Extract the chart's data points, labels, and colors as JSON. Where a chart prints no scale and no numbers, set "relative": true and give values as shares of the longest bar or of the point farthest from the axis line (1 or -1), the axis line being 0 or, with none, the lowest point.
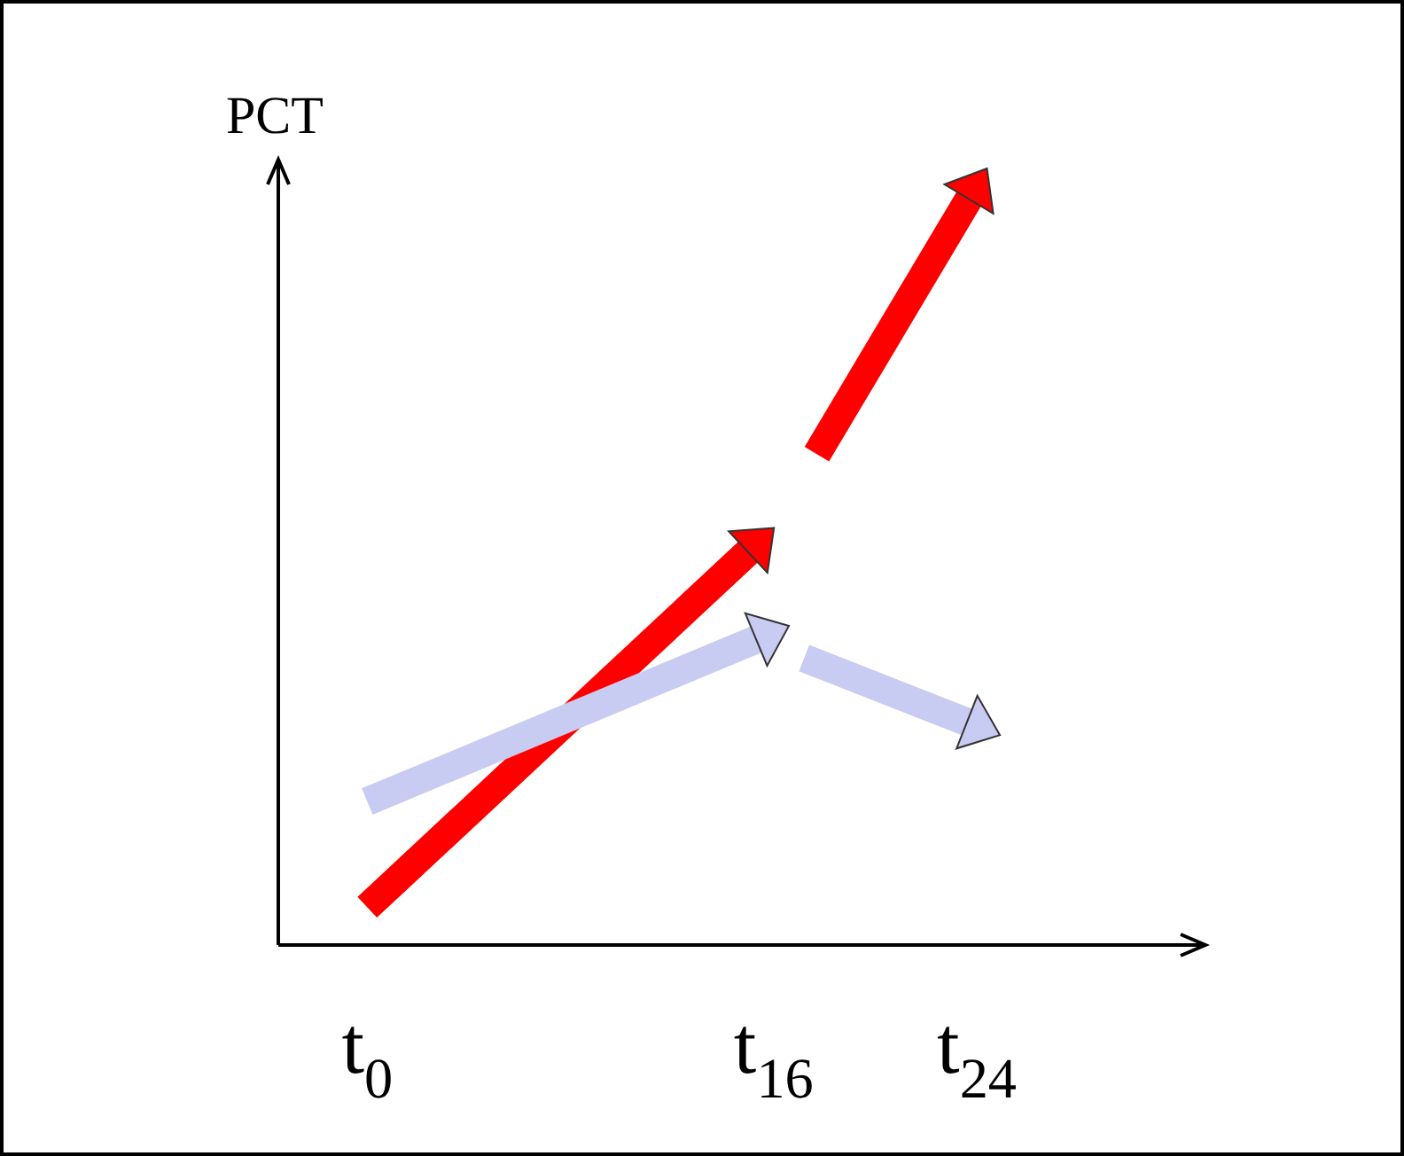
{
  "chart_data": {
    "type": "line",
    "relative": true,
    "ylabel": "PCT",
    "tick_labels": "x",
    "grid": false,
    "legend": false,
    "line_style": "solid",
    "xlim": [
      -3.5,
      33
    ],
    "xticks": [
      {
        "value": 0,
        "label": "t$_{0}$"
      },
      {
        "value": 16,
        "label": "t$_{16}$"
      },
      {
        "value": 24,
        "label": "t$_{24}$"
      }
    ],
    "series": [
      {
        "color": "#c8cbf2",
        "x": [
          0,
          15.7,
          16.5,
          17.2,
          24
        ],
        "values": [
          0.19,
          0.41,
          null,
          0.38,
          0.29
        ]
      },
      {
        "color": "#ff0000",
        "x": [
          0,
          15.3,
          16.5,
          17.7,
          23.9
        ],
        "values": [
          0.05,
          0.53,
          null,
          0.65,
          1
        ]
      }
    ]
  }
}
